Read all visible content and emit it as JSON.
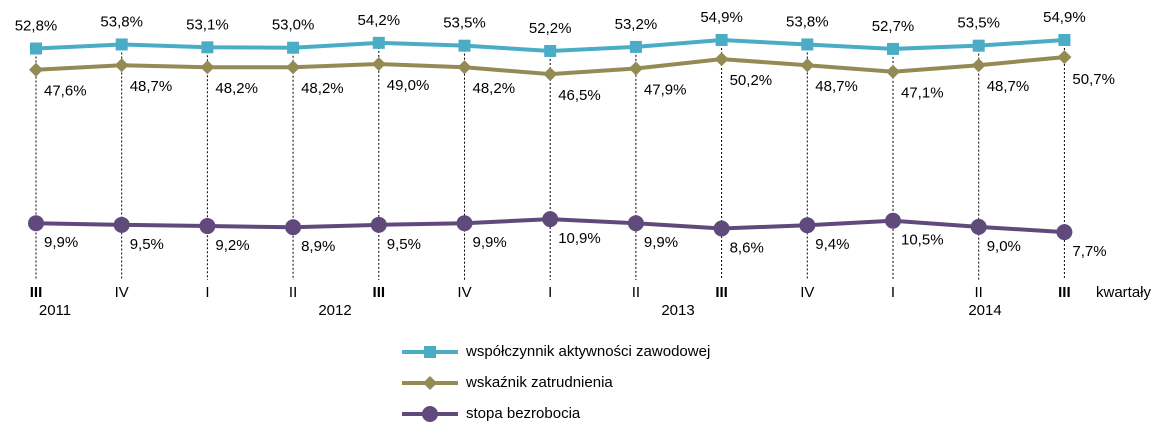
{
  "chart_data": {
    "type": "line",
    "categories": [
      "III",
      "IV",
      "I",
      "II",
      "III",
      "IV",
      "I",
      "II",
      "III",
      "IV",
      "I",
      "II",
      "III"
    ],
    "years": [
      "2011",
      "2012",
      "2013",
      "2014"
    ],
    "x_label": "kwartały",
    "ylim": [
      7,
      56
    ],
    "series": [
      {
        "name": "współczynnik aktywności zawodowej",
        "color": "#4bacc6",
        "marker": "square",
        "values": [
          52.8,
          53.8,
          53.1,
          53.0,
          54.2,
          53.5,
          52.2,
          53.2,
          54.9,
          53.8,
          52.7,
          53.5,
          54.9
        ],
        "value_labels": [
          "52,8%",
          "53,8%",
          "53,1%",
          "53,0%",
          "54,2%",
          "53,5%",
          "52,2%",
          "53,2%",
          "54,9%",
          "53,8%",
          "52,7%",
          "53,5%",
          "54,9%"
        ]
      },
      {
        "name": "wskaźnik zatrudnienia",
        "color": "#948a54",
        "marker": "diamond",
        "values": [
          47.6,
          48.7,
          48.2,
          48.2,
          49.0,
          48.2,
          46.5,
          47.9,
          50.2,
          48.7,
          47.1,
          48.7,
          50.7
        ],
        "value_labels": [
          "47,6%",
          "48,7%",
          "48,2%",
          "48,2%",
          "49,0%",
          "48,2%",
          "46,5%",
          "47,9%",
          "50,2%",
          "48,7%",
          "47,1%",
          "48,7%",
          "50,7%"
        ]
      },
      {
        "name": "stopa bezrobocia",
        "color": "#604a7b",
        "marker": "circle",
        "values": [
          9.9,
          9.5,
          9.2,
          8.9,
          9.5,
          9.9,
          10.9,
          9.9,
          8.6,
          9.4,
          10.5,
          9.0,
          7.7
        ],
        "value_labels": [
          "9,9%",
          "9,5%",
          "9,2%",
          "8,9%",
          "9,5%",
          "9,9%",
          "10,9%",
          "9,9%",
          "8,6%",
          "9,4%",
          "10,5%",
          "9,0%",
          "7,7%"
        ]
      }
    ]
  }
}
